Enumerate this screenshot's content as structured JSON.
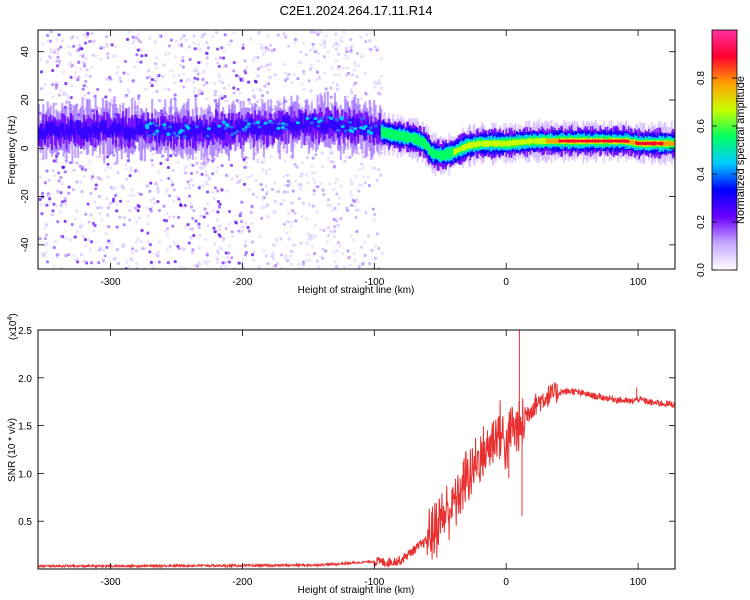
{
  "title": "C2E1.2024.264.17.11.R14",
  "chart_data": [
    {
      "type": "heatmap",
      "xlabel": "Height of straight line (km)",
      "ylabel": "Frequency (Hz)",
      "xlim": [
        -355,
        128
      ],
      "ylim": [
        -50,
        49
      ],
      "xticks": [
        -300,
        -200,
        -100,
        0,
        100
      ],
      "xtick_labels": [
        "-300",
        "-200",
        "-100",
        "0",
        "100"
      ],
      "yticks": [
        -40,
        -20,
        0,
        20,
        40
      ],
      "ytick_labels": [
        "-40",
        "-20",
        "0",
        "20",
        "40"
      ],
      "ridge": {
        "description": "dominant frequency track (Hz) vs height (km)",
        "x": [
          -355,
          -300,
          -250,
          -200,
          -150,
          -110,
          -90,
          -70,
          -62,
          -57,
          -50,
          -42,
          -30,
          -20,
          -10,
          0,
          20,
          50,
          90,
          100,
          128
        ],
        "y": [
          7,
          8,
          7,
          8,
          10,
          9,
          6,
          4,
          2,
          -2,
          -3,
          -2,
          1,
          2,
          2,
          2,
          3,
          3,
          3,
          2,
          2
        ]
      },
      "colorbar": {
        "label": "Normalized spectral amplitude",
        "range": [
          0,
          1
        ],
        "ticks": [
          0.0,
          0.2,
          0.4,
          0.6,
          0.8
        ],
        "tick_labels": [
          "0.0",
          "0.2",
          "0.4",
          "0.6",
          "0.8"
        ],
        "colors": [
          "#ffffff",
          "#c8a8ff",
          "#6a00ff",
          "#0000ff",
          "#00ccff",
          "#00ff60",
          "#c8ff00",
          "#ffa000",
          "#ff0030",
          "#ff30a0"
        ]
      }
    },
    {
      "type": "line",
      "xlabel": "Height of straight line (km)",
      "ylabel": "SNR (10 * v/v)",
      "y_scale_label": "(x10",
      "y_scale_exp": "4",
      "y_scale_close": ")",
      "xlim": [
        -355,
        128
      ],
      "ylim": [
        0,
        2.5
      ],
      "xticks": [
        -300,
        -200,
        -100,
        0,
        100
      ],
      "xtick_labels": [
        "-300",
        "-200",
        "-100",
        "0",
        "100"
      ],
      "yticks": [
        0.5,
        1.0,
        1.5,
        2.0,
        2.5
      ],
      "ytick_labels": [
        "0.5",
        "1.0",
        "1.5",
        "2.0",
        "2.5"
      ],
      "line_color": "#e83030",
      "series": [
        {
          "name": "SNR",
          "x": [
            -355,
            -300,
            -250,
            -200,
            -150,
            -130,
            -110,
            -100,
            -90,
            -80,
            -70,
            -60,
            -55,
            -50,
            -45,
            -40,
            -35,
            -30,
            -25,
            -20,
            -15,
            -10,
            -5,
            0,
            5,
            10,
            15,
            20,
            25,
            30,
            40,
            50,
            60,
            70,
            80,
            90,
            95,
            100,
            110,
            120,
            128
          ],
          "y": [
            0.03,
            0.03,
            0.035,
            0.035,
            0.04,
            0.05,
            0.07,
            0.08,
            0.07,
            0.09,
            0.2,
            0.3,
            0.4,
            0.5,
            0.6,
            0.7,
            0.8,
            0.95,
            1.05,
            1.15,
            1.25,
            1.35,
            1.45,
            1.3,
            1.5,
            1.45,
            1.6,
            1.7,
            1.75,
            1.8,
            1.85,
            1.86,
            1.83,
            1.8,
            1.78,
            1.76,
            1.75,
            1.78,
            1.74,
            1.73,
            1.72
          ]
        }
      ],
      "spikes": {
        "x": [
          10,
          12,
          2,
          99
        ],
        "y": [
          2.55,
          0.55,
          0.95,
          1.9
        ]
      }
    }
  ]
}
